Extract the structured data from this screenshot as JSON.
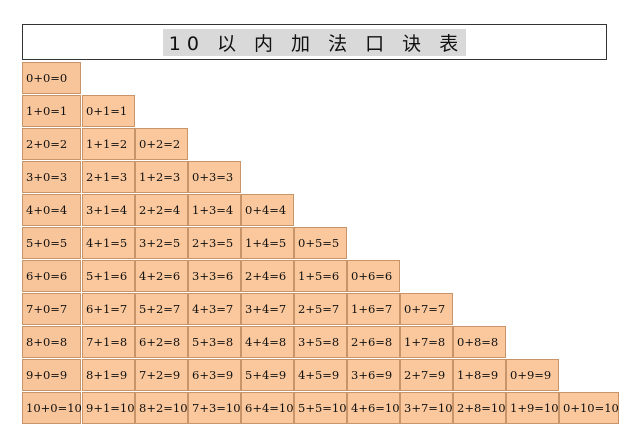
{
  "title": "10 以 内 加 法 口 诀 表",
  "table": {
    "rows": [
      [
        "0+0=0"
      ],
      [
        "1+0=1",
        "0+1=1"
      ],
      [
        "2+0=2",
        "1+1=2",
        "0+2=2"
      ],
      [
        "3+0=3",
        "2+1=3",
        "1+2=3",
        "0+3=3"
      ],
      [
        "4+0=4",
        "3+1=4",
        "2+2=4",
        "1+3=4",
        "0+4=4"
      ],
      [
        "5+0=5",
        "4+1=5",
        "3+2=5",
        "2+3=5",
        "1+4=5",
        "0+5=5"
      ],
      [
        "6+0=6",
        "5+1=6",
        "4+2=6",
        "3+3=6",
        "2+4=6",
        "1+5=6",
        "0+6=6"
      ],
      [
        "7+0=7",
        "6+1=7",
        "5+2=7",
        "4+3=7",
        "3+4=7",
        "2+5=7",
        "1+6=7",
        "0+7=7"
      ],
      [
        "8+0=8",
        "7+1=8",
        "6+2=8",
        "5+3=8",
        "4+4=8",
        "3+5=8",
        "2+6=8",
        "1+7=8",
        "0+8=8"
      ],
      [
        "9+0=9",
        "8+1=9",
        "7+2=9",
        "6+3=9",
        "5+4=9",
        "4+5=9",
        "3+6=9",
        "2+7=9",
        "1+8=9",
        "0+9=9"
      ],
      [
        "10+0=10",
        "9+1=10",
        "8+2=10",
        "7+3=10",
        "6+4=10",
        "5+5=10",
        "4+6=10",
        "3+7=10",
        "2+8=10",
        "1+9=10",
        "0+10=10"
      ]
    ]
  }
}
